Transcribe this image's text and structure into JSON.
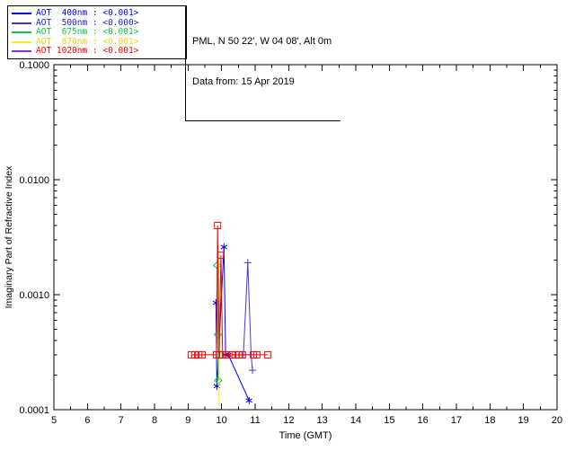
{
  "annotation": {
    "line1": "PML, N 50 22', W 04 08', Alt 0m",
    "line2": "Data from: 15 Apr 2019"
  },
  "legend": {
    "items": [
      {
        "label": "AOT  400nm : <0.001>",
        "line_color": "#0000ff",
        "text_color": "#0000ff"
      },
      {
        "label": "AOT  500nm : <0.000>",
        "line_color": "#4433cc",
        "text_color": "#2222cc"
      },
      {
        "label": "AOT  675nm : <0.001>",
        "line_color": "#00cc44",
        "text_color": "#00cc44"
      },
      {
        "label": "AOT  870nm : <0.001>",
        "line_color": "#ffee00",
        "text_color": "#e8d800"
      },
      {
        "label": "AOT 1020nm : <0.001>",
        "line_color": "#8833bb",
        "text_color": "#ff0000"
      }
    ]
  },
  "chart_data": {
    "type": "line",
    "title": "",
    "xlabel": "Time (GMT)",
    "ylabel": "Imaginary Part of Refractive Index",
    "xlim": [
      5,
      20
    ],
    "ylim": [
      0.0001,
      0.1
    ],
    "y_scale": "log",
    "grid": false,
    "x_ticks": [
      5,
      6,
      7,
      8,
      9,
      10,
      11,
      12,
      13,
      14,
      15,
      16,
      17,
      18,
      19,
      20
    ],
    "y_ticks": [
      {
        "label": "0.0001",
        "value": 0.0001
      },
      {
        "label": "0.0010",
        "value": 0.001
      },
      {
        "label": "0.0100",
        "value": 0.01
      },
      {
        "label": "0.1000",
        "value": 0.1
      }
    ],
    "series": [
      {
        "name": "AOT 400nm",
        "color": "#0000ff",
        "marker": "asterisk",
        "points": [
          [
            9.83,
            0.00085
          ],
          [
            9.86,
            0.00016
          ],
          [
            10.07,
            0.0026
          ],
          [
            10.12,
            0.0003
          ],
          [
            10.2,
            0.0003
          ],
          [
            10.82,
            0.00012
          ]
        ]
      },
      {
        "name": "AOT 500nm",
        "color": "#5533cc",
        "marker": "plus",
        "points": [
          [
            10.65,
            0.0003
          ],
          [
            10.78,
            0.0019
          ],
          [
            10.88,
            0.0003
          ],
          [
            10.92,
            0.00022
          ]
        ]
      },
      {
        "name": "AOT 675nm",
        "color": "#00cc44",
        "marker": "diamond",
        "points": [
          [
            9.87,
            0.0018
          ],
          [
            9.89,
            0.00045
          ],
          [
            9.9,
            0.00018
          ]
        ]
      },
      {
        "name": "AOT 870nm",
        "color": "#ffee00",
        "marker": "none",
        "points": [
          [
            9.92,
            0.002
          ],
          [
            9.925,
            0.00011
          ]
        ]
      },
      {
        "name": "AOT 1020nm",
        "color": "#ff0000",
        "marker": "square",
        "points": [
          [
            9.1,
            0.0003
          ],
          [
            9.2,
            0.0003
          ],
          [
            9.32,
            0.0003
          ],
          [
            9.42,
            0.0003
          ],
          [
            9.85,
            0.0003
          ],
          [
            9.88,
            0.004
          ],
          [
            9.93,
            0.0003
          ],
          [
            9.98,
            0.0022
          ],
          [
            10.03,
            0.0003
          ],
          [
            10.15,
            0.0003
          ],
          [
            10.3,
            0.0003
          ],
          [
            10.42,
            0.0003
          ],
          [
            10.52,
            0.0003
          ],
          [
            10.62,
            0.0003
          ],
          [
            10.95,
            0.0003
          ],
          [
            11.05,
            0.0003
          ],
          [
            11.38,
            0.0003
          ]
        ]
      }
    ]
  }
}
